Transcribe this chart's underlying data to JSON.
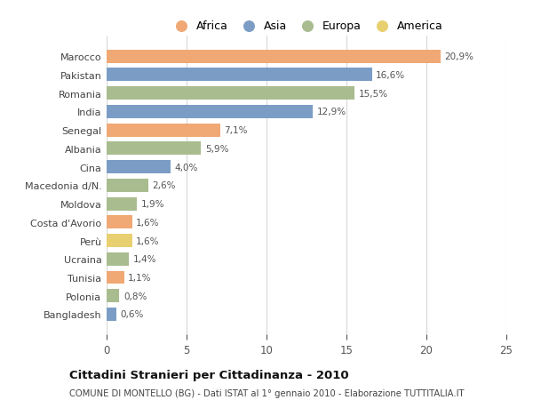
{
  "countries": [
    "Marocco",
    "Pakistan",
    "Romania",
    "India",
    "Senegal",
    "Albania",
    "Cina",
    "Macedonia d/N.",
    "Moldova",
    "Costa d'Avorio",
    "Perù",
    "Ucraina",
    "Tunisia",
    "Polonia",
    "Bangladesh"
  ],
  "values": [
    20.9,
    16.6,
    15.5,
    12.9,
    7.1,
    5.9,
    4.0,
    2.6,
    1.9,
    1.6,
    1.6,
    1.4,
    1.1,
    0.8,
    0.6
  ],
  "labels": [
    "20,9%",
    "16,6%",
    "15,5%",
    "12,9%",
    "7,1%",
    "5,9%",
    "4,0%",
    "2,6%",
    "1,9%",
    "1,6%",
    "1,6%",
    "1,4%",
    "1,1%",
    "0,8%",
    "0,6%"
  ],
  "continents": [
    "Africa",
    "Asia",
    "Europa",
    "Asia",
    "Africa",
    "Europa",
    "Asia",
    "Europa",
    "Europa",
    "Africa",
    "America",
    "Europa",
    "Africa",
    "Europa",
    "Asia"
  ],
  "continent_colors": {
    "Africa": "#F0A875",
    "Asia": "#7B9DC5",
    "Europa": "#A8BC8F",
    "America": "#E8D070"
  },
  "legend_order": [
    "Africa",
    "Asia",
    "Europa",
    "America"
  ],
  "title": "Cittadini Stranieri per Cittadinanza - 2010",
  "subtitle": "COMUNE DI MONTELLO (BG) - Dati ISTAT al 1° gennaio 2010 - Elaborazione TUTTITALIA.IT",
  "xlim": [
    0,
    25
  ],
  "xticks": [
    0,
    5,
    10,
    15,
    20,
    25
  ],
  "bg_color": "#ffffff",
  "grid_color": "#d8d8d8"
}
